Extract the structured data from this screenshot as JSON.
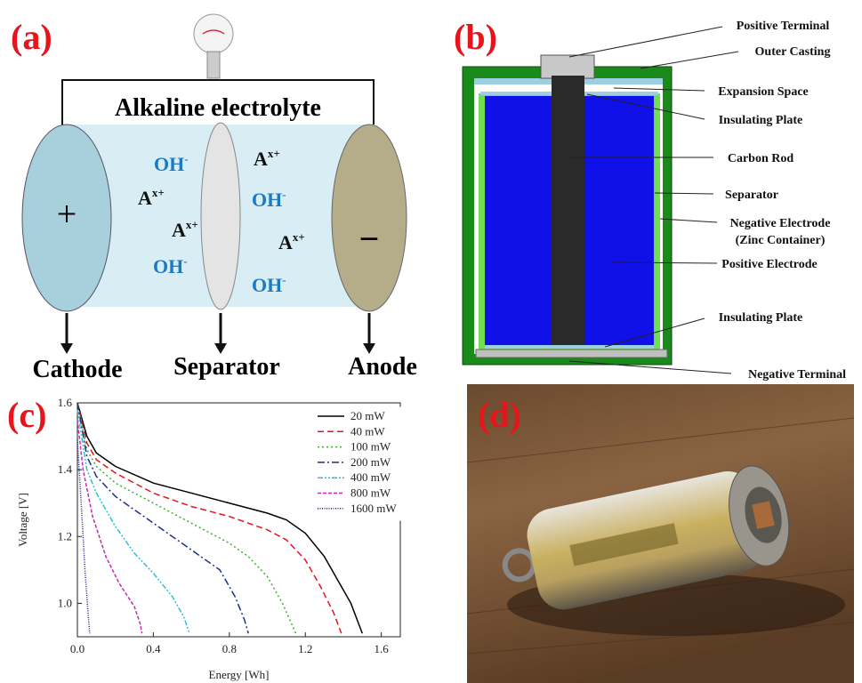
{
  "panels": {
    "a": {
      "label": "(a)",
      "title": "Alkaline electrolyte",
      "cathode_sign": "+",
      "anode_sign": "−",
      "ions": [
        {
          "base": "OH",
          "sup": "-"
        },
        {
          "base": "A",
          "sup": "x+"
        },
        {
          "base": "A",
          "sup": "x+"
        },
        {
          "base": "OH",
          "sup": "-"
        },
        {
          "base": "A",
          "sup": "x+"
        },
        {
          "base": "OH",
          "sup": "-"
        },
        {
          "base": "A",
          "sup": "x+"
        },
        {
          "base": "OH",
          "sup": "-"
        }
      ],
      "captions": [
        "Cathode",
        "Separator",
        "Anode"
      ]
    },
    "b": {
      "label": "(b)",
      "parts": [
        "Positive Terminal",
        "Outer Casting",
        "Expansion Space",
        "Insulating Plate",
        "Carbon Rod",
        "Separator",
        "Negative Electrode",
        "(Zinc Container)",
        "Positive Electrode",
        "Insulating Plate",
        "Negative Terminal"
      ]
    },
    "d": {
      "label": "(d)"
    }
  },
  "chart_data": {
    "type": "line",
    "label": "(c)",
    "x_label": "Energy [Wh]",
    "y_label": "Voltage [V]",
    "xlim": [
      0,
      1.7
    ],
    "ylim": [
      0.9,
      1.6
    ],
    "xticks": [
      {
        "value": 0,
        "label": "0.0"
      },
      {
        "value": 0.4,
        "label": "0.4"
      },
      {
        "value": 0.8,
        "label": "0.8"
      },
      {
        "value": 1.2,
        "label": "1.2"
      },
      {
        "value": 1.6,
        "label": "1.6"
      }
    ],
    "yticks": [
      {
        "value": 1,
        "label": "1.0"
      },
      {
        "value": 1.2,
        "label": "1.2"
      },
      {
        "value": 1.4,
        "label": "1.4"
      },
      {
        "value": 1.6,
        "label": "1.6"
      }
    ],
    "legend": "upper right",
    "series": [
      {
        "name": "20 mW",
        "color": "#000000",
        "style": "solid",
        "x": [
          0,
          0.05,
          0.1,
          0.2,
          0.4,
          0.6,
          0.8,
          1.0,
          1.1,
          1.2,
          1.3,
          1.38,
          1.44,
          1.5
        ],
        "values": [
          1.6,
          1.5,
          1.45,
          1.41,
          1.36,
          1.33,
          1.3,
          1.27,
          1.25,
          1.21,
          1.14,
          1.06,
          1.0,
          0.91
        ]
      },
      {
        "name": "40 mW",
        "color": "#e8141c",
        "style": "dashed",
        "x": [
          0,
          0.05,
          0.1,
          0.2,
          0.4,
          0.6,
          0.8,
          1.0,
          1.1,
          1.2,
          1.28,
          1.35,
          1.39
        ],
        "values": [
          1.6,
          1.48,
          1.43,
          1.39,
          1.33,
          1.29,
          1.26,
          1.22,
          1.19,
          1.13,
          1.05,
          0.97,
          0.91
        ]
      },
      {
        "name": "100 mW",
        "color": "#3cb028",
        "style": "dotted",
        "x": [
          0,
          0.05,
          0.1,
          0.2,
          0.4,
          0.6,
          0.8,
          0.9,
          1.0,
          1.08,
          1.15
        ],
        "values": [
          1.6,
          1.46,
          1.41,
          1.36,
          1.3,
          1.24,
          1.18,
          1.14,
          1.08,
          1.0,
          0.91
        ]
      },
      {
        "name": "200 mW",
        "color": "#1c2f8c",
        "style": "dashdot",
        "x": [
          0,
          0.05,
          0.1,
          0.2,
          0.4,
          0.6,
          0.75,
          0.83,
          0.88,
          0.9
        ],
        "values": [
          1.6,
          1.44,
          1.38,
          1.32,
          1.24,
          1.16,
          1.1,
          1.02,
          0.95,
          0.91
        ]
      },
      {
        "name": "400 mW",
        "color": "#2cc0d8",
        "style": "dashdotdot",
        "x": [
          0,
          0.05,
          0.1,
          0.2,
          0.3,
          0.4,
          0.5,
          0.56,
          0.59
        ],
        "values": [
          1.58,
          1.4,
          1.33,
          1.23,
          1.15,
          1.09,
          1.02,
          0.96,
          0.91
        ]
      },
      {
        "name": "800 mW",
        "color": "#c828b4",
        "style": "shortdash",
        "x": [
          0,
          0.03,
          0.08,
          0.15,
          0.22,
          0.3,
          0.33,
          0.34
        ],
        "values": [
          1.55,
          1.4,
          1.26,
          1.14,
          1.06,
          0.99,
          0.94,
          0.91
        ]
      },
      {
        "name": "1600 mW",
        "color": "#2a1c8c",
        "style": "densedot",
        "x": [
          0,
          0.02,
          0.04,
          0.055,
          0.065
        ],
        "values": [
          1.49,
          1.3,
          1.1,
          0.98,
          0.91
        ]
      }
    ]
  }
}
